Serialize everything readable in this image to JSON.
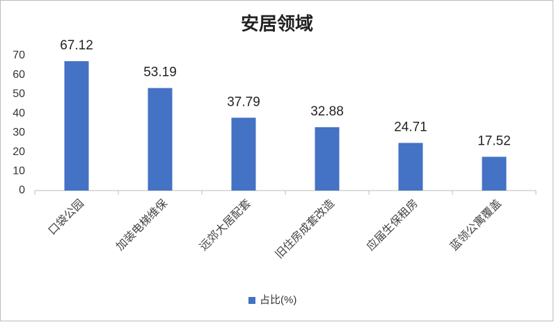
{
  "chart_data": {
    "type": "bar",
    "title": "安居领域",
    "categories": [
      "口袋公园",
      "加装电梯维保",
      "远郊大居配套",
      "旧住房成套改造",
      "应届生保租房",
      "蓝领公寓覆盖"
    ],
    "series": [
      {
        "name": "占比(%)",
        "color": "#4472c4",
        "values": [
          67.12,
          53.19,
          37.79,
          32.88,
          24.71,
          17.52
        ]
      }
    ],
    "ylim": [
      0,
      70
    ],
    "yticks": [
      0,
      10,
      20,
      30,
      40,
      50,
      60,
      70
    ],
    "grid": false,
    "legend": "bottom"
  }
}
